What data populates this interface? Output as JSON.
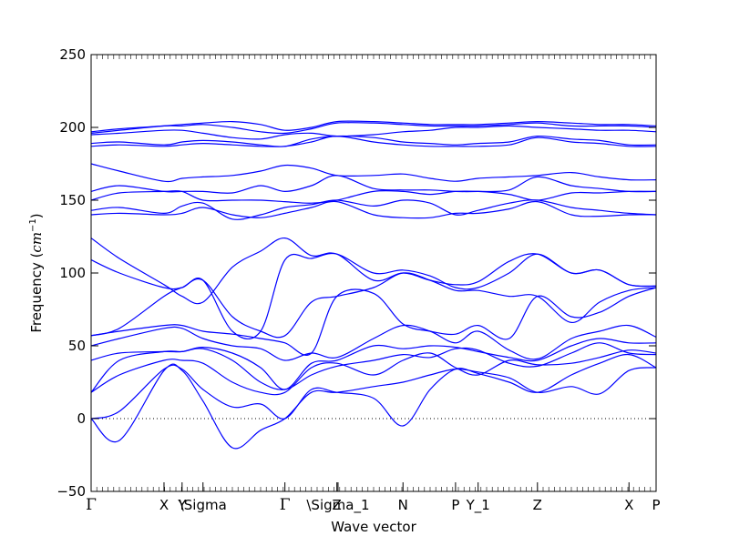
{
  "chart_data": {
    "type": "line",
    "xlabel": "Wave vector",
    "ylabel_prefix": "Frequency (",
    "ylabel_unit": "cm",
    "ylabel_exp": "−1",
    "ylabel_suffix": ")",
    "ylim": [
      -50,
      250
    ],
    "yticks": [
      -50,
      0,
      50,
      100,
      150,
      200,
      250
    ],
    "xlim": [
      0,
      1
    ],
    "grid": false,
    "zero_line": true,
    "line_color": "#0000ff",
    "xticks": [
      {
        "label": "Γ",
        "x": 0.0
      },
      {
        "label": "X",
        "x": 0.129
      },
      {
        "label": "Y",
        "x": 0.161
      },
      {
        "label": "\\Sigma",
        "x": 0.198
      },
      {
        "label": "Γ",
        "x": 0.343
      },
      {
        "label": "Z",
        "x": 0.435
      },
      {
        "label": "\\Sigma_1",
        "x": 0.437
      },
      {
        "label": "N",
        "x": 0.552
      },
      {
        "label": "P",
        "x": 0.645
      },
      {
        "label": "Y_1",
        "x": 0.685
      },
      {
        "label": "Z",
        "x": 0.79
      },
      {
        "label": "X",
        "x": 0.952
      },
      {
        "label": "P",
        "x": 1.0
      }
    ],
    "x": [
      0,
      0.05,
      0.129,
      0.161,
      0.198,
      0.25,
      0.3,
      0.343,
      0.39,
      0.435,
      0.5,
      0.552,
      0.6,
      0.645,
      0.685,
      0.74,
      0.79,
      0.85,
      0.9,
      0.952,
      1.0
    ],
    "series": [
      {
        "values": [
          0,
          -15,
          33,
          33,
          12,
          -20,
          -8,
          0,
          18,
          18,
          22,
          25,
          30,
          34,
          32,
          28,
          18,
          22,
          17,
          33,
          35
        ]
      },
      {
        "values": [
          0,
          5,
          34,
          34,
          20,
          8,
          10,
          0,
          20,
          18,
          14,
          -5,
          20,
          34,
          31,
          25,
          18,
          30,
          38,
          44,
          35
        ]
      },
      {
        "values": [
          18,
          30,
          40,
          40,
          38,
          25,
          18,
          18,
          35,
          38,
          30,
          40,
          45,
          35,
          30,
          40,
          37,
          38,
          42,
          47,
          45
        ]
      },
      {
        "values": [
          18,
          40,
          46,
          46,
          48,
          40,
          25,
          20,
          30,
          36,
          40,
          44,
          42,
          48,
          47,
          38,
          36,
          45,
          52,
          45,
          44
        ]
      },
      {
        "values": [
          40,
          45,
          46,
          46,
          49,
          45,
          35,
          20,
          38,
          40,
          50,
          48,
          50,
          49,
          46,
          42,
          40,
          50,
          55,
          52,
          52
        ]
      },
      {
        "values": [
          50,
          55,
          62,
          62,
          55,
          50,
          48,
          40,
          45,
          42,
          55,
          64,
          60,
          52,
          60,
          47,
          41,
          55,
          60,
          64,
          56
        ]
      },
      {
        "values": [
          57,
          60,
          64,
          64,
          60,
          58,
          55,
          52,
          45,
          84,
          86,
          65,
          60,
          58,
          64,
          55,
          84,
          70,
          73,
          84,
          90
        ]
      },
      {
        "values": [
          57,
          62,
          84,
          90,
          95,
          70,
          60,
          57,
          80,
          84,
          90,
          100,
          95,
          88,
          88,
          84,
          84,
          66,
          80,
          88,
          90
        ]
      },
      {
        "values": [
          109,
          100,
          90,
          90,
          95,
          60,
          60,
          109,
          110,
          113,
          100,
          102,
          98,
          90,
          90,
          100,
          113,
          100,
          102,
          92,
          91
        ]
      },
      {
        "values": [
          124,
          110,
          92,
          84,
          80,
          104,
          115,
          124,
          112,
          113,
          95,
          100,
          95,
          92,
          94,
          108,
          113,
          100,
          102,
          92,
          91
        ]
      },
      {
        "values": [
          140,
          141,
          140,
          141,
          145,
          140,
          138,
          141,
          145,
          149,
          140,
          138,
          138,
          141,
          141,
          144,
          149,
          140,
          139,
          140,
          140
        ]
      },
      {
        "values": [
          143,
          145,
          141,
          146,
          148,
          137,
          140,
          145,
          147,
          150,
          146,
          150,
          148,
          140,
          143,
          148,
          150,
          145,
          143,
          141,
          140
        ]
      },
      {
        "values": [
          150,
          155,
          156,
          156,
          150,
          150,
          150,
          149,
          148,
          150,
          156,
          156,
          154,
          156,
          156,
          154,
          150,
          155,
          155,
          156,
          156
        ]
      },
      {
        "values": [
          156,
          160,
          156,
          156,
          156,
          155,
          160,
          156,
          160,
          167,
          158,
          157,
          157,
          156,
          156,
          157,
          166,
          160,
          158,
          156,
          156
        ]
      },
      {
        "values": [
          175,
          170,
          163,
          165,
          166,
          167,
          170,
          174,
          172,
          167,
          167,
          168,
          165,
          163,
          165,
          166,
          167,
          169,
          166,
          164,
          164
        ]
      },
      {
        "values": [
          187,
          188,
          187,
          188,
          189,
          188,
          187,
          187,
          190,
          194,
          190,
          188,
          187,
          187,
          187,
          188,
          193,
          190,
          189,
          187,
          187
        ]
      },
      {
        "values": [
          189,
          190,
          188,
          190,
          191,
          190,
          188,
          187,
          192,
          194,
          193,
          190,
          189,
          188,
          189,
          190,
          194,
          192,
          191,
          188,
          188
        ]
      },
      {
        "values": [
          195,
          196,
          198,
          198,
          196,
          193,
          192,
          195,
          196,
          194,
          195,
          197,
          198,
          200,
          200,
          201,
          200,
          199,
          198,
          198,
          197
        ]
      },
      {
        "values": [
          196,
          198,
          201,
          201,
          202,
          200,
          197,
          196,
          199,
          203,
          203,
          202,
          201,
          201,
          201,
          202,
          203,
          201,
          201,
          201,
          200
        ]
      },
      {
        "values": [
          197,
          199,
          201,
          202,
          203,
          204,
          202,
          198,
          200,
          204,
          204,
          203,
          202,
          202,
          202,
          203,
          204,
          203,
          202,
          202,
          201
        ]
      }
    ]
  }
}
